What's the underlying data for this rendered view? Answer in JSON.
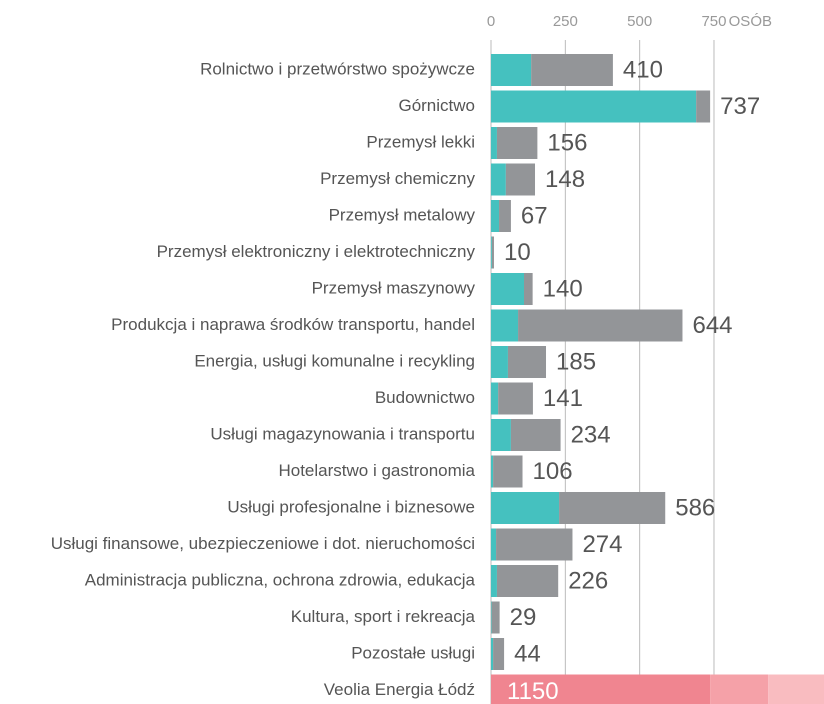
{
  "chart_data": {
    "type": "stacked-hbar",
    "x_unit": "OSÓB",
    "categories": [
      "Rolnictwo i przetwórstwo spożywcze",
      "Górnictwo",
      "Przemysł lekki",
      "Przemysł chemiczny",
      "Przemysł metalowy",
      "Przemysł elektroniczny i elektrotechniczny",
      "Przemysł maszynowy",
      "Produkcja i naprawa środków transportu, handel",
      "Energia, usługi komunalne i recykling",
      "Budownictwo",
      "Usługi magazynowania i transportu",
      "Hotelarstwo i gastronomia",
      "Usługi profesjonalne i biznesowe",
      "Usługi finansowe, ubezpieczeniowe i dot. nieruchomości",
      "Administracja publiczna, ochrona zdrowia, edukacja",
      "Kultura, sport i rekreacja",
      "Pozostałe usługi"
    ],
    "series": [
      {
        "color": "#45c1bf",
        "values": [
          135,
          690,
          20,
          50,
          27,
          3,
          111,
          91,
          57,
          24,
          67,
          7,
          229,
          17,
          20,
          2,
          7
        ]
      },
      {
        "color": "#939598",
        "values": [
          275,
          47,
          136,
          98,
          40,
          7,
          29,
          553,
          128,
          117,
          167,
          99,
          357,
          257,
          206,
          27,
          37
        ]
      }
    ],
    "totals": [
      410,
      737,
      156,
      148,
      67,
      10,
      140,
      644,
      185,
      141,
      234,
      106,
      586,
      274,
      226,
      29,
      44
    ],
    "highlight": {
      "category": "Veolia Energia Łódź",
      "total": 1150,
      "values": [
        737,
        195,
        218
      ],
      "colors": [
        "#f08590",
        "#f5a1a8",
        "#f9bcc0"
      ]
    },
    "xlim": [
      0,
      1120
    ],
    "xticks": [
      0,
      250,
      500,
      750
    ],
    "grid": true
  }
}
